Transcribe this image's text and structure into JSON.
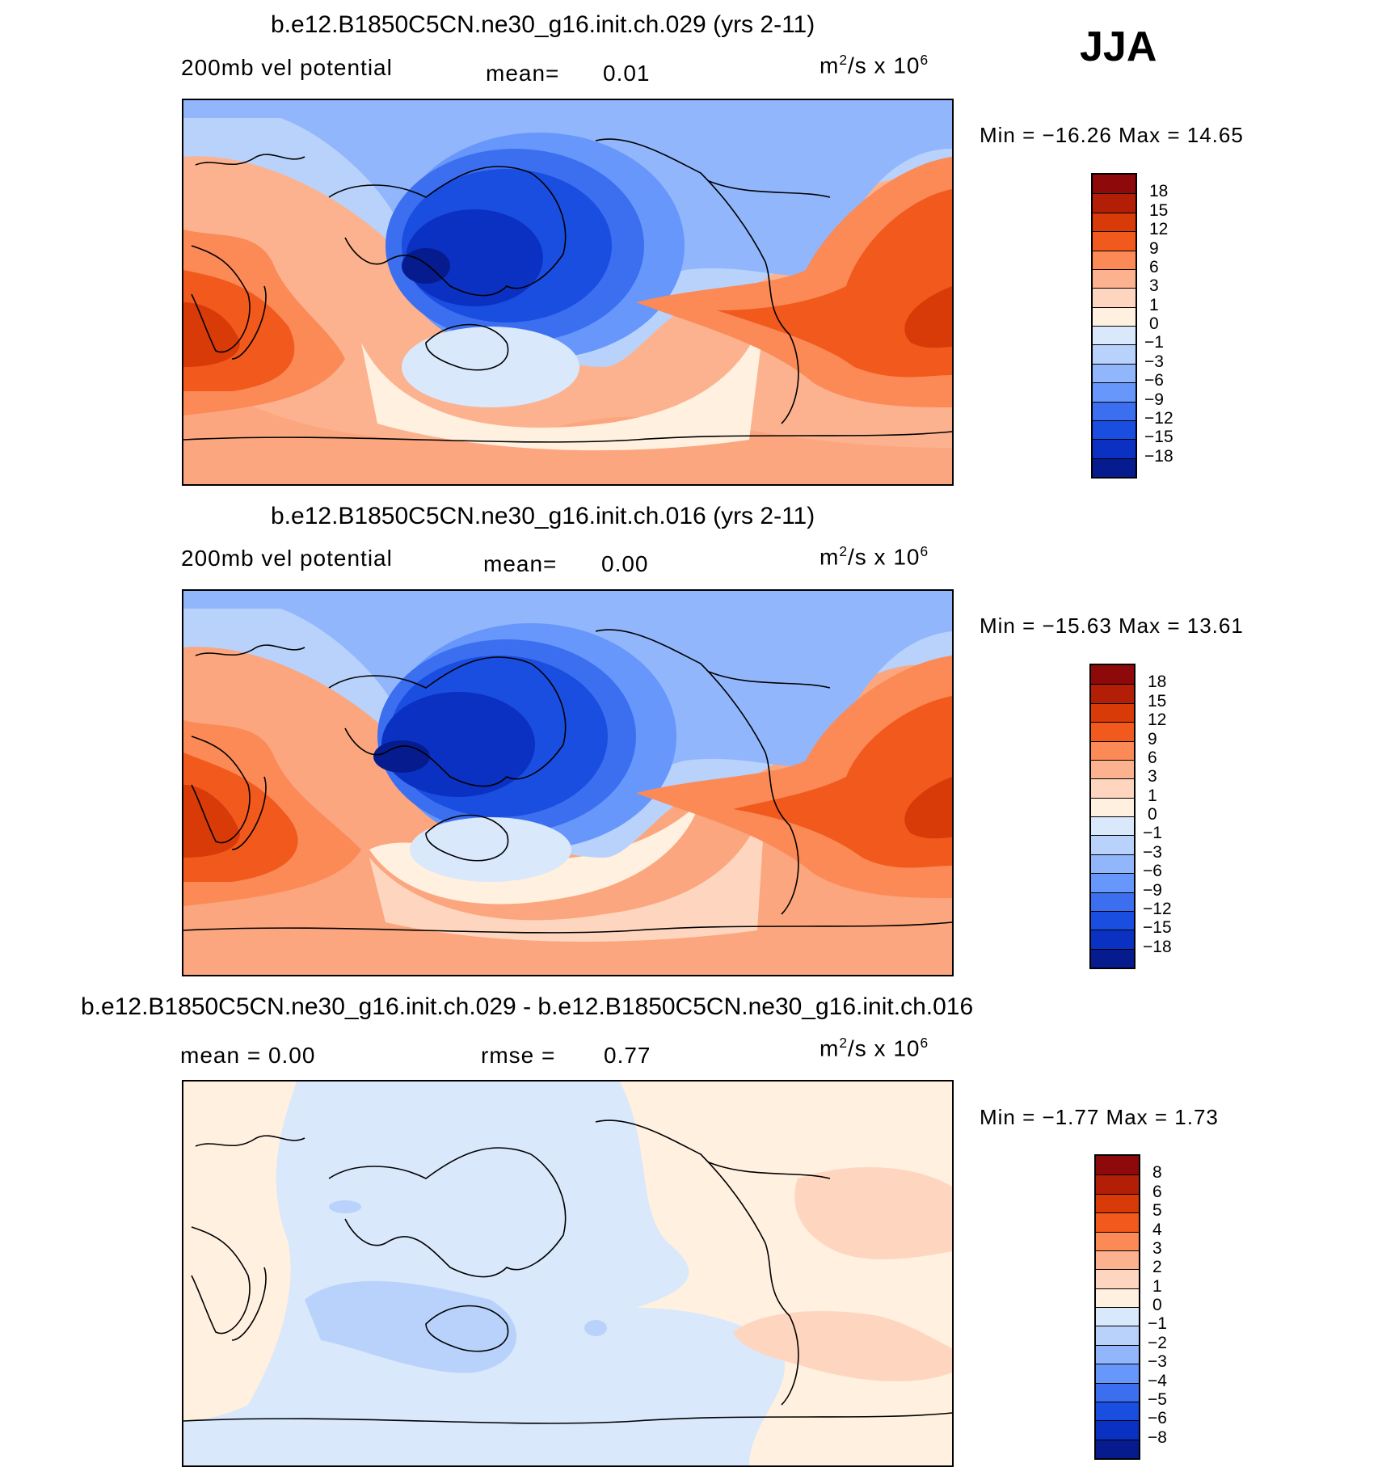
{
  "season": "JJA",
  "panels": [
    {
      "title": "b.e12.B1850C5CN.ne30_g16.init.ch.029 (yrs 2-11)",
      "left_label": "200mb  vel  potential",
      "mid_label": "mean=",
      "mid_value": "0.01",
      "units": "m",
      "units_sup": "2",
      "units_rest": "/s  x  10",
      "units_sup2": "6",
      "minmax": "Min  =  −16.26  Max  =    14.65",
      "colorbar": {
        "labels": [
          "18",
          "15",
          "12",
          "9",
          "6",
          "3",
          "1",
          "0",
          "−1",
          "−3",
          "−6",
          "−9",
          "−12",
          "−15",
          "−18"
        ],
        "colors": [
          "#8e0a0a",
          "#b21f06",
          "#d83a08",
          "#f2591d",
          "#fb8a57",
          "#fcb28f",
          "#fed6bf",
          "#fff0e0",
          "#d9e8fb",
          "#b8d2fb",
          "#92b6fc",
          "#6797fb",
          "#3c6ff0",
          "#1a4ee0",
          "#0b31c2",
          "#061c8e"
        ]
      }
    },
    {
      "title": "b.e12.B1850C5CN.ne30_g16.init.ch.016 (yrs 2-11)",
      "left_label": "200mb  vel  potential",
      "mid_label": "mean=",
      "mid_value": "0.00",
      "units": "m",
      "units_sup": "2",
      "units_rest": "/s  x  10",
      "units_sup2": "6",
      "minmax": "Min  =  −15.63  Max  =    13.61",
      "colorbar": {
        "labels": [
          "18",
          "15",
          "12",
          "9",
          "6",
          "3",
          "1",
          "0",
          "−1",
          "−3",
          "−6",
          "−9",
          "−12",
          "−15",
          "−18"
        ],
        "colors": [
          "#8e0a0a",
          "#b21f06",
          "#d83a08",
          "#f2591d",
          "#fb8a57",
          "#fcb28f",
          "#fed6bf",
          "#fff0e0",
          "#d9e8fb",
          "#b8d2fb",
          "#92b6fc",
          "#6797fb",
          "#3c6ff0",
          "#1a4ee0",
          "#0b31c2",
          "#061c8e"
        ]
      }
    },
    {
      "title": "b.e12.B1850C5CN.ne30_g16.init.ch.029 - b.e12.B1850C5CN.ne30_g16.init.ch.016",
      "left_label": "mean  =      0.00",
      "mid_label": "rmse  =",
      "mid_value": "0.77",
      "units": "m",
      "units_sup": "2",
      "units_rest": "/s  x  10",
      "units_sup2": "6",
      "minmax": "Min  =    −1.77  Max  =     1.73",
      "colorbar": {
        "labels": [
          "8",
          "6",
          "5",
          "4",
          "3",
          "2",
          "1",
          "0",
          "−1",
          "−2",
          "−3",
          "−4",
          "−5",
          "−6",
          "−8"
        ],
        "colors": [
          "#8e0a0a",
          "#b21f06",
          "#d83a08",
          "#f2591d",
          "#fb8a57",
          "#fcb28f",
          "#fed6bf",
          "#fff0e0",
          "#d9e8fb",
          "#b8d2fb",
          "#92b6fc",
          "#6797fb",
          "#3c6ff0",
          "#1a4ee0",
          "#0b31c2",
          "#061c8e"
        ]
      }
    }
  ]
}
